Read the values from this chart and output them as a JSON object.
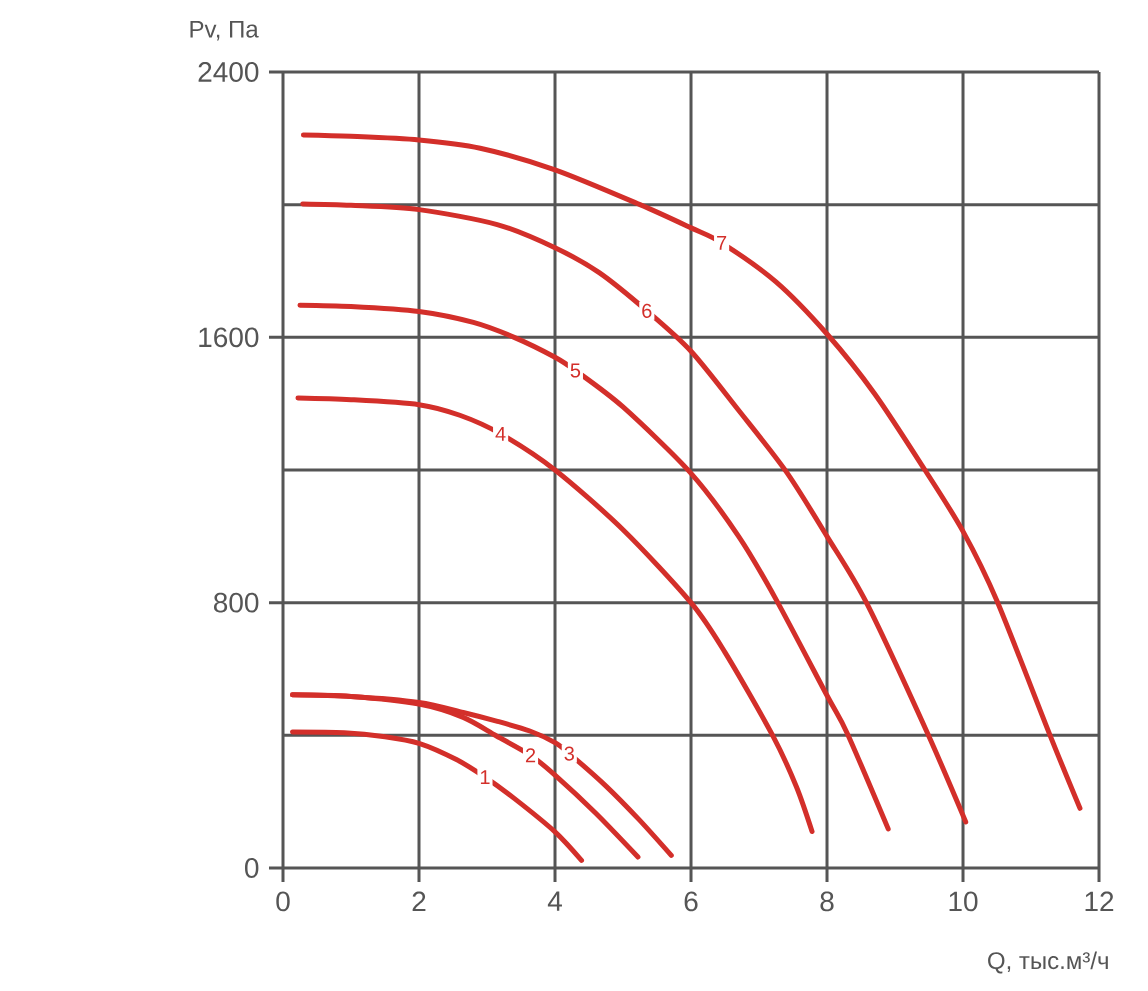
{
  "chart_data": {
    "type": "line",
    "xlabel": "Q, тыс.м³/ч",
    "ylabel": "Pv, Па",
    "xlim": [
      0,
      12
    ],
    "ylim": [
      0,
      2400
    ],
    "xticks": [
      0,
      2,
      4,
      6,
      8,
      10,
      12
    ],
    "yticks": [
      0,
      {
        "value": 400,
        "label": null
      },
      800,
      {
        "value": 1200,
        "label": null
      },
      1600,
      {
        "value": 2000,
        "label": null
      },
      2400
    ],
    "grid": true,
    "series": [
      {
        "name": "1",
        "color": "#d32f2a",
        "x": [
          0.14,
          0.9,
          1.5,
          2.0,
          2.55,
          2.97,
          3.4,
          4.0,
          4.39
        ],
        "values": [
          410,
          408,
          396,
          376,
          327,
          274,
          210,
          109,
          23
        ]
      },
      {
        "name": "2",
        "color": "#d32f2a",
        "x": [
          0.14,
          1.0,
          2.0,
          2.65,
          3.14,
          3.64,
          4.0,
          4.6,
          5.22
        ],
        "values": [
          522,
          517,
          494,
          454,
          398,
          340,
          280,
          165,
          33
        ]
      },
      {
        "name": "3",
        "color": "#d32f2a",
        "x": [
          0.14,
          1.0,
          2.0,
          2.65,
          3.14,
          3.63,
          4.0,
          4.21,
          4.75,
          5.24,
          5.71
        ],
        "values": [
          522,
          517,
          499,
          469,
          443,
          413,
          378,
          345,
          247,
          145,
          38
        ]
      },
      {
        "name": "4",
        "color": "#d32f2a",
        "x": [
          0.22,
          1.0,
          2.0,
          2.6,
          3.2,
          4.0,
          5.0,
          6.0,
          6.5,
          7.2,
          7.55,
          7.78
        ],
        "values": [
          1417,
          1412,
          1397,
          1365,
          1309,
          1200,
          1020,
          800,
          650,
          400,
          245,
          110
        ]
      },
      {
        "name": "5",
        "color": "#d32f2a",
        "x": [
          0.25,
          1.0,
          2.0,
          2.8,
          3.4,
          4.0,
          4.3,
          5.0,
          6.0,
          6.7,
          7.25,
          8.0,
          8.3,
          8.9
        ],
        "values": [
          1697,
          1693,
          1678,
          1645,
          1600,
          1540,
          1500,
          1390,
          1190,
          1000,
          810,
          520,
          405,
          118
        ]
      },
      {
        "name": "6",
        "color": "#d32f2a",
        "x": [
          0.29,
          1.0,
          2.0,
          3.15,
          4.0,
          4.65,
          5.35,
          6.0,
          6.7,
          7.4,
          8.0,
          8.58,
          9.47,
          10.04
        ],
        "values": [
          2002,
          1998,
          1985,
          1940,
          1870,
          1795,
          1680,
          1558,
          1380,
          1195,
          1000,
          800,
          410,
          139
        ]
      },
      {
        "name": "7",
        "color": "#d32f2a",
        "x": [
          0.3,
          1.0,
          2.0,
          2.9,
          4.0,
          5.25,
          6.0,
          6.45,
          7.25,
          8.0,
          8.7,
          9.44,
          10.0,
          10.5,
          11.28,
          11.72
        ],
        "values": [
          2210,
          2206,
          2195,
          2170,
          2105,
          2000,
          1930,
          1885,
          1767,
          1610,
          1430,
          1200,
          1015,
          805,
          400,
          180
        ]
      }
    ]
  }
}
